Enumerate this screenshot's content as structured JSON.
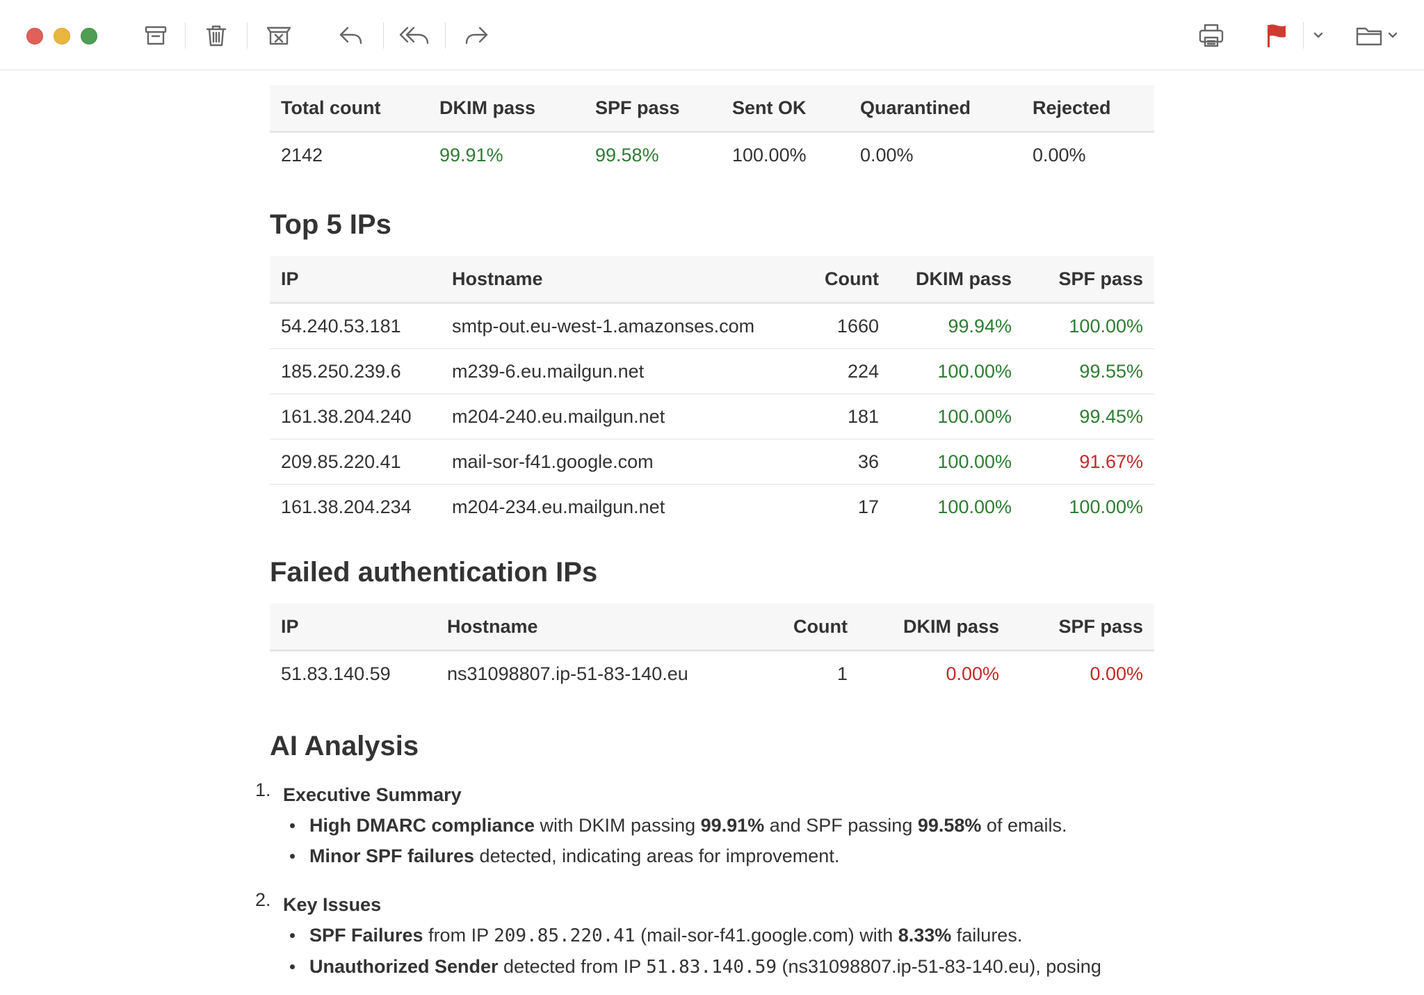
{
  "toolbar": {
    "icons": [
      "archive-icon",
      "trash-icon",
      "junk-icon",
      "reply-icon",
      "reply-all-icon",
      "forward-icon",
      "print-icon",
      "flag-icon",
      "chevron-down-icon",
      "folder-icon"
    ],
    "colors": {
      "flag": "#d23a30"
    }
  },
  "summary": {
    "headers": [
      "Total count",
      "DKIM pass",
      "SPF pass",
      "Sent OK",
      "Quarantined",
      "Rejected"
    ],
    "row": [
      "2142",
      "99.91%",
      "99.58%",
      "100.00%",
      "0.00%",
      "0.00%"
    ]
  },
  "top_ips": {
    "title": "Top 5 IPs",
    "headers": [
      "IP",
      "Hostname",
      "Count",
      "DKIM pass",
      "SPF pass"
    ],
    "rows": [
      [
        "54.240.53.181",
        "smtp-out.eu-west-1.amazonses.com",
        "1660",
        "99.94%",
        "100.00%"
      ],
      [
        "185.250.239.6",
        "m239-6.eu.mailgun.net",
        "224",
        "100.00%",
        "99.55%"
      ],
      [
        "161.38.204.240",
        "m204-240.eu.mailgun.net",
        "181",
        "100.00%",
        "99.45%"
      ],
      [
        "209.85.220.41",
        "mail-sor-f41.google.com",
        "36",
        "100.00%",
        "91.67%"
      ],
      [
        "161.38.204.234",
        "m204-234.eu.mailgun.net",
        "17",
        "100.00%",
        "100.00%"
      ]
    ]
  },
  "failed_ips": {
    "title": "Failed authentication IPs",
    "headers": [
      "IP",
      "Hostname",
      "Count",
      "DKIM pass",
      "SPF pass"
    ],
    "rows": [
      [
        "51.83.140.59",
        "ns31098807.ip-51-83-140.eu",
        "1",
        "0.00%",
        "0.00%"
      ]
    ]
  },
  "analysis": {
    "title": "AI Analysis",
    "s1": {
      "num": "1.",
      "title": "Executive Summary",
      "b1": {
        "bold": "High DMARC compliance",
        "t1": " with DKIM passing ",
        "v1": "99.91%",
        "t2": " and SPF passing ",
        "v2": "99.58%",
        "t3": " of emails."
      },
      "b2": {
        "bold": "Minor SPF failures",
        "t1": " detected, indicating areas for improvement."
      }
    },
    "s2": {
      "num": "2.",
      "title": "Key Issues",
      "b1": {
        "bold": "SPF Failures",
        "t1": " from IP ",
        "ip": "209.85.220.41",
        "t2": " (mail-sor-f41.google.com) with ",
        "v1": "8.33%",
        "t3": " failures."
      },
      "b2": {
        "bold": "Unauthorized Sender",
        "t1": " detected from IP ",
        "ip": "51.83.140.59",
        "t2": " (ns31098807.ip-51-83-140.eu), posing"
      }
    }
  }
}
